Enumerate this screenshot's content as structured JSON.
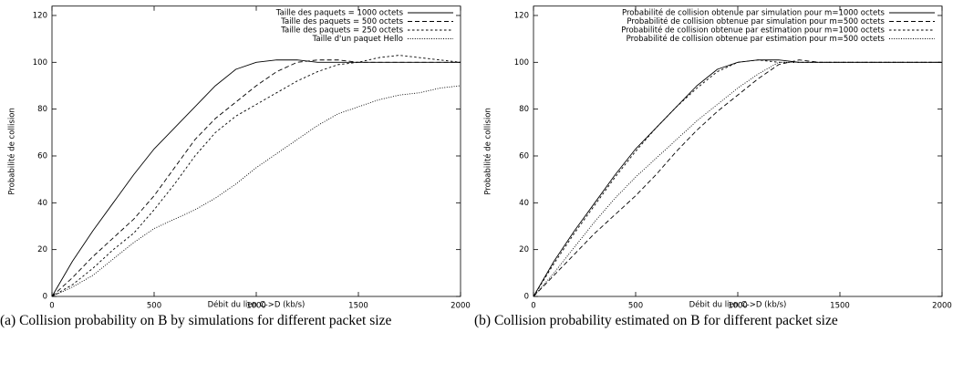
{
  "chart_data": [
    {
      "type": "line",
      "caption": "(a) Collision probability on B by simulations for different packet size",
      "xlabel": "Débit du lien  C->D (kb/s)",
      "ylabel": "Probabilité de collision",
      "xlim": [
        0,
        2000
      ],
      "xticks": [
        0,
        500,
        1000,
        1500,
        2000
      ],
      "ylim": [
        0,
        124
      ],
      "yticks": [
        0,
        20,
        40,
        60,
        80,
        100,
        120
      ],
      "legend": "top-right",
      "grid": false,
      "x": [
        0,
        100,
        200,
        300,
        400,
        500,
        600,
        700,
        800,
        900,
        1000,
        1100,
        1200,
        1300,
        1400,
        1500,
        1600,
        1700,
        1800,
        1900,
        2000
      ],
      "series": [
        {
          "name": "Taille des paquets = 1000 octets",
          "color": "#000000",
          "style": "solid",
          "values": [
            0,
            15,
            28,
            40,
            52,
            63,
            72,
            81,
            90,
            97,
            100,
            101,
            101,
            100,
            100,
            100,
            100,
            100,
            100,
            100,
            100
          ]
        },
        {
          "name": "Taille des paquets =  500 octets",
          "color": "#000000",
          "style": "dashed",
          "values": [
            0,
            8,
            17,
            25,
            33,
            43,
            55,
            67,
            76,
            83,
            90,
            96,
            100,
            101,
            101,
            100,
            100,
            100,
            100,
            100,
            100
          ]
        },
        {
          "name": "Taille des paquets =  250 octets",
          "color": "#000000",
          "style": "short-dashed",
          "values": [
            0,
            5,
            12,
            20,
            27,
            37,
            48,
            60,
            70,
            77,
            82,
            87,
            92,
            96,
            99,
            100,
            102,
            103,
            102,
            101,
            100
          ]
        },
        {
          "name": "Taille d'un paquet Hello",
          "color": "#000000",
          "style": "dotted",
          "values": [
            0,
            4,
            9,
            16,
            23,
            29,
            33,
            37,
            42,
            48,
            55,
            61,
            67,
            73,
            78,
            81,
            84,
            86,
            87,
            89,
            90
          ]
        }
      ]
    },
    {
      "type": "line",
      "caption": "(b) Collision probability estimated on B for different packet size",
      "xlabel": "Débit du lien  C->D (kb/s)",
      "ylabel": "Probabilité de collision",
      "xlim": [
        0,
        2000
      ],
      "xticks": [
        0,
        500,
        1000,
        1500,
        2000
      ],
      "ylim": [
        0,
        124
      ],
      "yticks": [
        0,
        20,
        40,
        60,
        80,
        100,
        120
      ],
      "legend": "top-right",
      "grid": false,
      "x": [
        0,
        100,
        200,
        300,
        400,
        500,
        600,
        700,
        800,
        900,
        1000,
        1100,
        1200,
        1300,
        1400,
        1500,
        1600,
        1700,
        1800,
        1900,
        2000
      ],
      "series": [
        {
          "name": "Probabilité de collision obtenue par simulation pour m=1000 octets",
          "color": "#000000",
          "style": "solid",
          "values": [
            0,
            15,
            28,
            40,
            52,
            63,
            72,
            81,
            90,
            97,
            100,
            101,
            101,
            100,
            100,
            100,
            100,
            100,
            100,
            100,
            100
          ]
        },
        {
          "name": "Probabilité de collision obtenue par simulation pour m=500 octets",
          "color": "#000000",
          "style": "dashed",
          "values": [
            0,
            9,
            18,
            27,
            35,
            43,
            52,
            62,
            71,
            79,
            86,
            93,
            99,
            101,
            100,
            100,
            100,
            100,
            100,
            100,
            100
          ]
        },
        {
          "name": "Probabilité de collision obtenue par estimation pour m=1000 octets",
          "color": "#000000",
          "style": "short-dashed",
          "values": [
            0,
            14,
            27,
            39,
            51,
            62,
            72,
            81,
            89,
            96,
            100,
            101,
            100,
            100,
            100,
            100,
            100,
            100,
            100,
            100,
            100
          ]
        },
        {
          "name": "Probabilité de collision obtenue par estimation pour m=500 octets",
          "color": "#000000",
          "style": "dotted",
          "values": [
            0,
            10,
            21,
            32,
            42,
            51,
            59,
            67,
            75,
            82,
            89,
            95,
            100,
            100,
            100,
            100,
            100,
            100,
            100,
            100,
            100
          ]
        }
      ]
    }
  ]
}
